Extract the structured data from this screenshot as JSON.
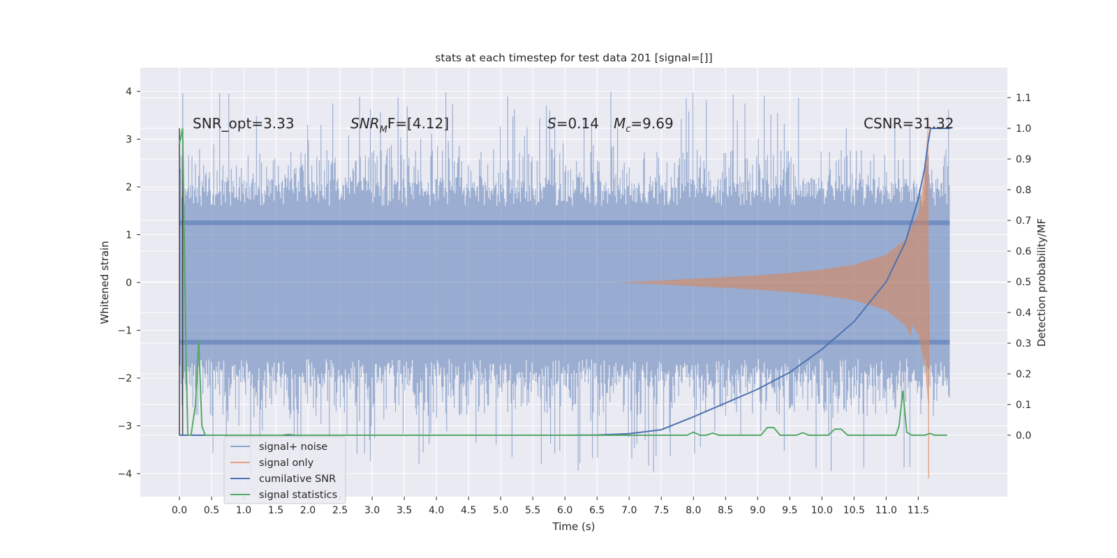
{
  "chart_data": {
    "type": "line",
    "title": "stats at each timestep for test data 201 [signal=[]]",
    "xlabel": "Time (s)",
    "ylabel": "Whitened strain",
    "y2label": "Detection probability/MF",
    "xlim": [
      -0.5,
      12.7
    ],
    "ylim": [
      -4.45,
      4.5
    ],
    "y2lim": [
      -0.195,
      1.2
    ],
    "xticks": [
      0.0,
      0.5,
      1.0,
      1.5,
      2.0,
      2.5,
      3.0,
      3.5,
      4.0,
      4.5,
      5.0,
      5.5,
      6.0,
      6.5,
      7.0,
      7.5,
      8.0,
      8.5,
      9.0,
      9.5,
      10.0,
      10.5,
      11.0,
      11.5
    ],
    "xtick_labels": [
      "0.0",
      "0.5",
      "1.0",
      "1.5",
      "2.0",
      "2.5",
      "3.0",
      "3.5",
      "4.0",
      "4.5",
      "5.0",
      "5.5",
      "6.0",
      "6.5",
      "7.0",
      "7.5",
      "8.0",
      "8.5",
      "9.0",
      "9.5",
      "10.0",
      "10.5",
      "11.0",
      "11.5"
    ],
    "yticks": [
      4,
      3,
      2,
      1,
      0,
      -1,
      -2,
      -3,
      -4
    ],
    "ytick_labels": [
      "4",
      "3",
      "2",
      "1",
      "0",
      "−1",
      "−2",
      "−3",
      "−4"
    ],
    "y2ticks": [
      1.1,
      1.0,
      0.9,
      0.8,
      0.7,
      0.6,
      0.5,
      0.4,
      0.3,
      0.2,
      0.1,
      0.0
    ],
    "y2tick_labels": [
      "1.1",
      "1.0",
      "0.9",
      "0.8",
      "0.7",
      "0.6",
      "0.5",
      "0.4",
      "0.3",
      "0.2",
      "0.1",
      "0.0"
    ],
    "grid": true,
    "legend_position": "lower-left",
    "annotations": {
      "snr_opt": "SNR_opt=3.33",
      "snr_mf_main": "SNR",
      "snr_mf_sub": "M",
      "snr_mf_rest": "F=[4.12]",
      "s_main": "S",
      "s_rest": "=0.14",
      "mc_main": "M",
      "mc_sub": "c",
      "mc_rest": "=9.69",
      "csnr": "CSNR=31.32"
    },
    "series": [
      {
        "name": "signal+ noise",
        "color": "#4c72b0",
        "axis": "left",
        "kind": "noise-band",
        "x_range": [
          0.0,
          11.99
        ],
        "band_core": [
          -1.9,
          1.95
        ],
        "spike_max": [
          -4.0,
          4.1
        ]
      },
      {
        "name": "signal only",
        "color": "#dd8452",
        "axis": "left",
        "kind": "chirp",
        "envelope": [
          {
            "x": 6.8,
            "amp": 0.0
          },
          {
            "x": 7.5,
            "amp": 0.04
          },
          {
            "x": 8.0,
            "amp": 0.08
          },
          {
            "x": 8.5,
            "amp": 0.11
          },
          {
            "x": 9.0,
            "amp": 0.15
          },
          {
            "x": 9.5,
            "amp": 0.2
          },
          {
            "x": 10.0,
            "amp": 0.27
          },
          {
            "x": 10.5,
            "amp": 0.37
          },
          {
            "x": 11.0,
            "amp": 0.58
          },
          {
            "x": 11.3,
            "amp": 0.9
          },
          {
            "x": 11.5,
            "amp": 1.45
          },
          {
            "x": 11.6,
            "amp": 2.3
          },
          {
            "x": 11.66,
            "amp": 3.55
          },
          {
            "x": 11.7,
            "amp": 0.0
          }
        ],
        "dip": {
          "x": 11.66,
          "y": -4.1
        }
      },
      {
        "name": "cumilative SNR",
        "color": "#4c72b0",
        "axis": "right",
        "points": [
          {
            "x": 0.0,
            "y": 0.0
          },
          {
            "x": 6.0,
            "y": 0.0
          },
          {
            "x": 6.5,
            "y": 0.001
          },
          {
            "x": 7.0,
            "y": 0.005
          },
          {
            "x": 7.5,
            "y": 0.018
          },
          {
            "x": 8.0,
            "y": 0.06
          },
          {
            "x": 8.5,
            "y": 0.105
          },
          {
            "x": 9.0,
            "y": 0.15
          },
          {
            "x": 9.5,
            "y": 0.205
          },
          {
            "x": 10.0,
            "y": 0.28
          },
          {
            "x": 10.5,
            "y": 0.37
          },
          {
            "x": 11.0,
            "y": 0.5
          },
          {
            "x": 11.3,
            "y": 0.63
          },
          {
            "x": 11.5,
            "y": 0.77
          },
          {
            "x": 11.6,
            "y": 0.87
          },
          {
            "x": 11.65,
            "y": 0.95
          },
          {
            "x": 11.69,
            "y": 1.0
          },
          {
            "x": 12.0,
            "y": 1.0
          }
        ]
      },
      {
        "name": "signal statistics",
        "color": "#55a868",
        "axis": "right",
        "points": [
          {
            "x": 0.0,
            "y": 0.95
          },
          {
            "x": 0.05,
            "y": 1.0
          },
          {
            "x": 0.1,
            "y": 0.3
          },
          {
            "x": 0.13,
            "y": 0.0
          },
          {
            "x": 0.18,
            "y": 0.0
          },
          {
            "x": 0.25,
            "y": 0.1
          },
          {
            "x": 0.3,
            "y": 0.31
          },
          {
            "x": 0.35,
            "y": 0.03
          },
          {
            "x": 0.4,
            "y": 0.0
          },
          {
            "x": 1.6,
            "y": 0.0
          },
          {
            "x": 1.7,
            "y": 0.003
          },
          {
            "x": 1.8,
            "y": 0.0
          },
          {
            "x": 7.9,
            "y": 0.0
          },
          {
            "x": 8.0,
            "y": 0.01
          },
          {
            "x": 8.1,
            "y": 0.0
          },
          {
            "x": 8.2,
            "y": 0.0
          },
          {
            "x": 8.3,
            "y": 0.007
          },
          {
            "x": 8.4,
            "y": 0.0
          },
          {
            "x": 9.05,
            "y": 0.0
          },
          {
            "x": 9.15,
            "y": 0.025
          },
          {
            "x": 9.25,
            "y": 0.025
          },
          {
            "x": 9.35,
            "y": 0.0
          },
          {
            "x": 9.6,
            "y": 0.0
          },
          {
            "x": 9.7,
            "y": 0.008
          },
          {
            "x": 9.8,
            "y": 0.0
          },
          {
            "x": 10.1,
            "y": 0.0
          },
          {
            "x": 10.2,
            "y": 0.02
          },
          {
            "x": 10.3,
            "y": 0.02
          },
          {
            "x": 10.4,
            "y": 0.0
          },
          {
            "x": 11.15,
            "y": 0.0
          },
          {
            "x": 11.2,
            "y": 0.03
          },
          {
            "x": 11.26,
            "y": 0.145
          },
          {
            "x": 11.32,
            "y": 0.01
          },
          {
            "x": 11.4,
            "y": 0.0
          },
          {
            "x": 11.6,
            "y": 0.0
          },
          {
            "x": 11.68,
            "y": 0.006
          },
          {
            "x": 11.76,
            "y": 0.0
          },
          {
            "x": 11.95,
            "y": 0.0
          }
        ]
      }
    ]
  }
}
